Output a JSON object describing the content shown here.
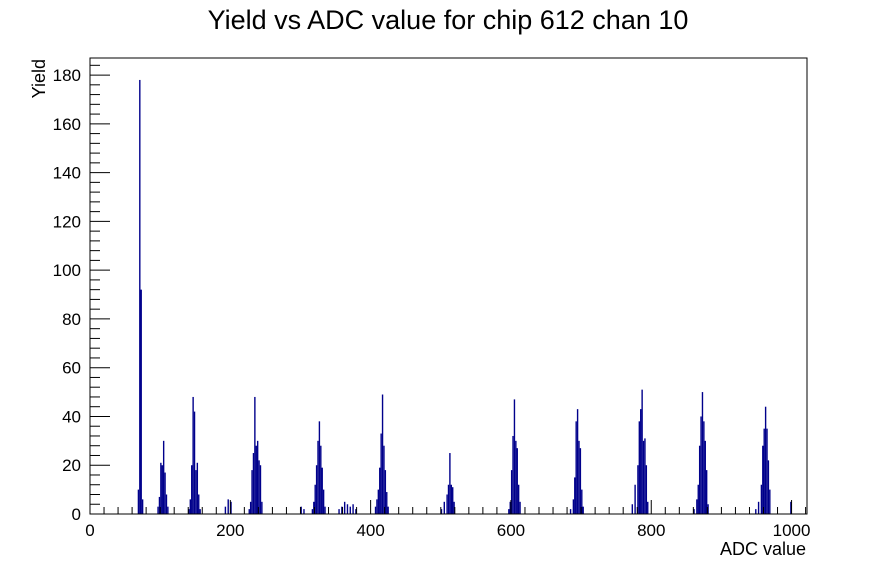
{
  "chart_data": {
    "type": "bar",
    "title": "Yield vs ADC value for chip 612 chan 10",
    "xlabel": "ADC value",
    "ylabel": "Yield",
    "xlim": [
      0,
      1022
    ],
    "ylim": [
      0,
      187
    ],
    "bin_width": 2,
    "xticks": [
      "0",
      "200",
      "400",
      "600",
      "800",
      "1000"
    ],
    "yticks": [
      "0",
      "20",
      "40",
      "60",
      "80",
      "100",
      "120",
      "140",
      "160",
      "180"
    ],
    "bar_color": "#00008b",
    "series": [
      {
        "x": [
          68,
          70,
          72,
          74,
          96,
          98,
          100,
          102,
          104,
          106,
          108,
          110,
          140,
          142,
          144,
          146,
          148,
          150,
          152,
          154,
          156,
          192,
          196,
          200,
          226,
          228,
          230,
          232,
          234,
          236,
          238,
          240,
          242,
          244,
          300,
          304,
          316,
          318,
          320,
          322,
          324,
          326,
          328,
          330,
          332,
          334,
          354,
          358,
          362,
          366,
          370,
          374,
          378,
          406,
          408,
          410,
          412,
          414,
          416,
          418,
          420,
          422,
          424,
          500,
          504,
          508,
          510,
          512,
          514,
          516,
          518,
          596,
          598,
          600,
          602,
          604,
          606,
          608,
          610,
          612,
          684,
          688,
          690,
          692,
          694,
          696,
          698,
          700,
          702,
          772,
          776,
          780,
          782,
          784,
          786,
          788,
          790,
          792,
          794,
          860,
          864,
          866,
          868,
          870,
          872,
          874,
          876,
          878,
          880,
          948,
          952,
          956,
          958,
          960,
          962,
          964,
          966,
          968,
          998
        ],
        "y": [
          10,
          178,
          92,
          6,
          3,
          7,
          21,
          20,
          30,
          17,
          8,
          3,
          2,
          6,
          20,
          48,
          42,
          18,
          21,
          8,
          2,
          3,
          6,
          5,
          2,
          5,
          18,
          25,
          48,
          28,
          30,
          22,
          20,
          5,
          3,
          2,
          2,
          5,
          12,
          20,
          30,
          38,
          28,
          19,
          10,
          3,
          2,
          3,
          5,
          4,
          3,
          4,
          2,
          3,
          6,
          10,
          19,
          33,
          49,
          28,
          18,
          9,
          3,
          2,
          5,
          8,
          12,
          25,
          12,
          11,
          5,
          2,
          5,
          18,
          32,
          47,
          30,
          27,
          12,
          5,
          2,
          6,
          15,
          38,
          43,
          30,
          27,
          10,
          3,
          4,
          12,
          20,
          38,
          43,
          51,
          30,
          31,
          20,
          5,
          2,
          6,
          12,
          28,
          40,
          50,
          38,
          30,
          18,
          4,
          2,
          5,
          12,
          28,
          35,
          44,
          35,
          22,
          10,
          5
        ]
      }
    ]
  }
}
